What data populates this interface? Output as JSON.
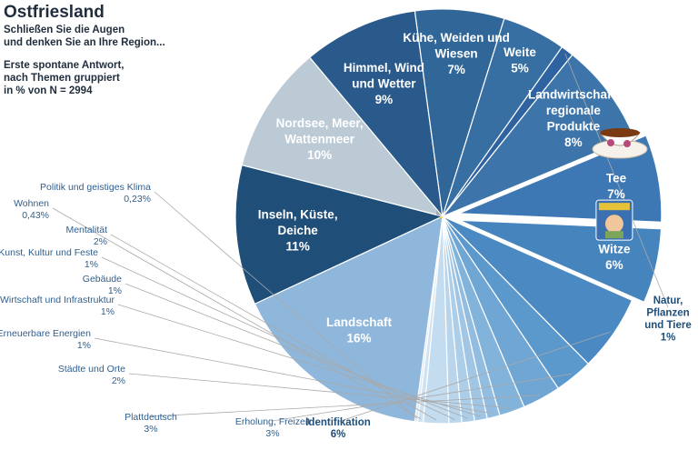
{
  "header": {
    "title": "Ostfriesland",
    "subtitle_line1": "Schließen Sie die Augen",
    "subtitle_line2": "und denken Sie an Ihre Region...",
    "note_line1": "Erste spontane Antwort,",
    "note_line2": "nach Themen gruppiert",
    "note_line3": "in % von N = 2994"
  },
  "chart_data": {
    "type": "pie",
    "title": "Ostfriesland",
    "unit": "%",
    "slices": [
      {
        "label_lines": [
          "Inseln, Küste,",
          "Deiche"
        ],
        "value": 11,
        "value_text": "11%",
        "color": "#1f4e79",
        "inside": true
      },
      {
        "label_lines": [
          "Nordsee, Meer,",
          "Wattenmeer"
        ],
        "value": 10,
        "value_text": "10%",
        "color": "#bccad6",
        "inside": true
      },
      {
        "label_lines": [
          "Himmel, Wind",
          "und Wetter"
        ],
        "value": 9,
        "value_text": "9%",
        "color": "#2a5a8c",
        "inside": true
      },
      {
        "label_lines": [
          "Kühe, Weiden und",
          "Wiesen"
        ],
        "value": 7,
        "value_text": "7%",
        "color": "#316699",
        "inside": true
      },
      {
        "label_lines": [
          "Weite"
        ],
        "value": 5,
        "value_text": "5%",
        "color": "#386fa3",
        "inside": true
      },
      {
        "label_lines": [
          "Natur,",
          "Pflanzen",
          "und Tiere"
        ],
        "value": 1,
        "value_text": "1%",
        "color": "#2e62a0",
        "inside": false,
        "side": "right"
      },
      {
        "label_lines": [
          "Landwirtschaft,",
          "regionale",
          "Produkte"
        ],
        "value": 8,
        "value_text": "8%",
        "color": "#3d75ab",
        "inside": true
      },
      {
        "label_lines": [
          "Tee"
        ],
        "value": 7,
        "value_text": "7%",
        "color": "#3d78b5",
        "inside": true,
        "exploded": true
      },
      {
        "label_lines": [
          "Witze"
        ],
        "value": 6,
        "value_text": "6%",
        "color": "#4684be",
        "inside": true,
        "exploded": true
      },
      {
        "label_lines": [
          "Identifikation"
        ],
        "value": 6,
        "value_text": "6%",
        "color": "#4a89c2",
        "inside": false,
        "side": "bottom"
      },
      {
        "label_lines": [
          "Erholung, Freizeit"
        ],
        "value": 3,
        "value_text": "3%",
        "color": "#5b98cc",
        "inside": false,
        "side": "bottom"
      },
      {
        "label_lines": [
          "Plattdeutsch"
        ],
        "value": 3,
        "value_text": "3%",
        "color": "#6fa6d4",
        "inside": false,
        "side": "bottom"
      },
      {
        "label_lines": [
          "Städte und Orte"
        ],
        "value": 2,
        "value_text": "2%",
        "color": "#82b3db",
        "inside": false,
        "side": "left"
      },
      {
        "label_lines": [
          "Erneuerbare Energien"
        ],
        "value": 1,
        "value_text": "1%",
        "color": "#92bde0",
        "inside": false,
        "side": "left"
      },
      {
        "label_lines": [
          "Wirtschaft und Infrastruktur"
        ],
        "value": 1,
        "value_text": "1%",
        "color": "#a0c6e4",
        "inside": false,
        "side": "left"
      },
      {
        "label_lines": [
          "Gebäude"
        ],
        "value": 1,
        "value_text": "1%",
        "color": "#adcee8",
        "inside": false,
        "side": "left"
      },
      {
        "label_lines": [
          "Kunst, Kultur und Feste"
        ],
        "value": 1,
        "value_text": "1%",
        "color": "#b8d5ec",
        "inside": false,
        "side": "left"
      },
      {
        "label_lines": [
          "Mentalität"
        ],
        "value": 2,
        "value_text": "2%",
        "color": "#c3dcef",
        "inside": false,
        "side": "left"
      },
      {
        "label_lines": [
          "Wohnen"
        ],
        "value": 0.43,
        "value_text": "0,43%",
        "color": "#cfe2f2",
        "inside": false,
        "side": "left"
      },
      {
        "label_lines": [
          "Politik und geistiges Klima"
        ],
        "value": 0.23,
        "value_text": "0,23%",
        "color": "#d9e8f5",
        "inside": false,
        "side": "left"
      },
      {
        "label_lines": [
          "Landschaft"
        ],
        "value": 16,
        "value_text": "16%",
        "color": "#8fb7dc",
        "inside": true,
        "image": "windmill-rapeseed-field"
      }
    ],
    "legend": "none",
    "label_color_inside": "#ffffff",
    "label_color_outside": "#2f5f8f"
  }
}
